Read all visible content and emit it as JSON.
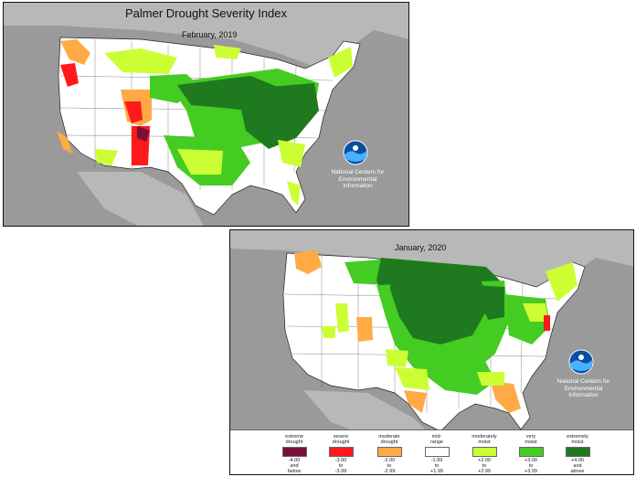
{
  "maps": [
    {
      "title": "Palmer Drought Severity Index",
      "period": "February, 2019",
      "credit": [
        "National Centers for",
        "Environmental",
        "Information"
      ],
      "logo": "noaa-logo"
    },
    {
      "title": "",
      "period": "January, 2020",
      "credit": [
        "National Centers for",
        "Environmental",
        "Information"
      ],
      "logo": "noaa-logo"
    }
  ],
  "legend": [
    {
      "label": [
        "extreme",
        "drought"
      ],
      "range": [
        "-4.00",
        "and",
        "below"
      ],
      "color": "#7a0f3a"
    },
    {
      "label": [
        "severe",
        "drought"
      ],
      "range": [
        "-3.00",
        "to",
        "-3.99"
      ],
      "color": "#ff1a1a"
    },
    {
      "label": [
        "moderate",
        "drought"
      ],
      "range": [
        "-2.00",
        "to",
        "-2.99"
      ],
      "color": "#ffaa44"
    },
    {
      "label": [
        "mid-",
        "range"
      ],
      "range": [
        "-1.99",
        "to",
        "+1.99"
      ],
      "color": "#ffffff"
    },
    {
      "label": [
        "moderately",
        "moist"
      ],
      "range": [
        "+2.00",
        "to",
        "+2.99"
      ],
      "color": "#ccff33"
    },
    {
      "label": [
        "very",
        "moist"
      ],
      "range": [
        "+3.00",
        "to",
        "+3.99"
      ],
      "color": "#44cc22"
    },
    {
      "label": [
        "extremely",
        "moist"
      ],
      "range": [
        "+4.00",
        "and",
        "above"
      ],
      "color": "#1f7a1f"
    }
  ],
  "colors": {
    "ocean": "#9a9a9a",
    "land_other": "#b8b8b8",
    "midrange": "#ffffff",
    "extreme_drought": "#7a0f3a",
    "severe_drought": "#ff1a1a",
    "moderate_drought": "#ffaa44",
    "moderately_moist": "#ccff33",
    "very_moist": "#44cc22",
    "extremely_moist": "#1f7a1f"
  }
}
